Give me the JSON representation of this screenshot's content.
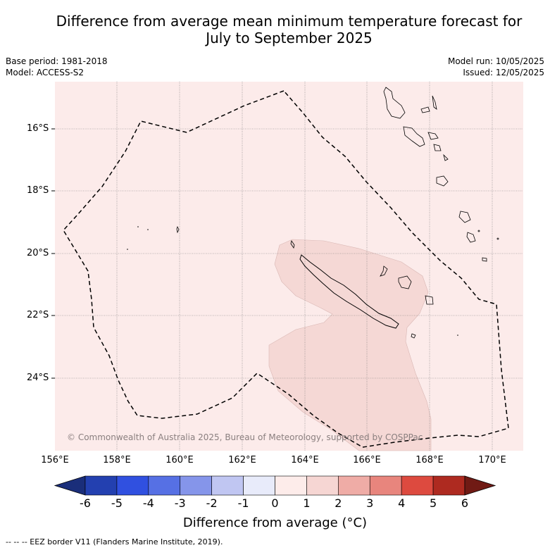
{
  "title_line1": "Difference from average mean minimum temperature forecast for",
  "title_line2": "July to September 2025",
  "base_period": "Base period: 1981-2018",
  "model": "Model: ACCESS-S2",
  "model_run": "Model run: 10/05/2025",
  "issued": "Issued: 12/05/2025",
  "lat_labels": [
    "16°S",
    "18°S",
    "20°S",
    "22°S",
    "24°S"
  ],
  "lon_labels": [
    "156°E",
    "158°E",
    "160°E",
    "162°E",
    "164°E",
    "166°E",
    "168°E",
    "170°E"
  ],
  "colorbar": {
    "title": "Difference from average (°C)",
    "ticks": [
      "-6",
      "-5",
      "-4",
      "-3",
      "-2",
      "-1",
      "0",
      "1",
      "2",
      "3",
      "4",
      "5",
      "6"
    ],
    "colors": [
      "#1a2e7a",
      "#2340b0",
      "#3050e0",
      "#5670e4",
      "#8595ea",
      "#c0c6f2",
      "#e8ebfa",
      "#fdecea",
      "#f6d6d3",
      "#efaca6",
      "#e8857d",
      "#dd4a3f",
      "#ae2a20",
      "#701a14"
    ]
  },
  "map_background_color": "#fcebea",
  "positive_anomaly_color": "#f5d8d5",
  "copyright": "© Commonwealth of Australia 2025, Bureau of Meteorology, supported by COSPPac",
  "footnote": "--  --  -- EEZ border V11 (Flanders Marine Institute, 2019)."
}
